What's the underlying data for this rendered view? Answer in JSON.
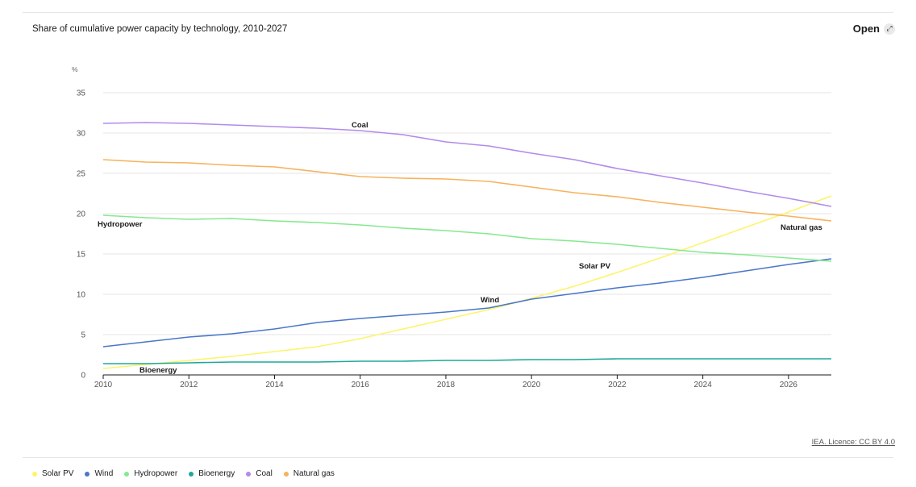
{
  "header": {
    "title": "Share of cumulative power capacity by technology, 2010-2027",
    "open_label": "Open",
    "open_icon": "expand-icon"
  },
  "source_label": "IEA. Licence: CC BY 4.0",
  "chart_data": {
    "type": "line",
    "title": "Share of cumulative power capacity by technology, 2010-2027",
    "xlabel": "",
    "ylabel": "%",
    "xlim": [
      2010,
      2027
    ],
    "ylim": [
      0,
      35
    ],
    "x_ticks": [
      2010,
      2012,
      2014,
      2016,
      2018,
      2020,
      2022,
      2024,
      2026
    ],
    "y_ticks": [
      0,
      5,
      10,
      15,
      20,
      25,
      30,
      35
    ],
    "grid": true,
    "legend_position": "bottom-left",
    "x": [
      2010,
      2011,
      2012,
      2013,
      2014,
      2015,
      2016,
      2017,
      2018,
      2019,
      2020,
      2021,
      2022,
      2023,
      2024,
      2025,
      2026,
      2027
    ],
    "series": [
      {
        "name": "Solar PV",
        "color": "#fdf46b",
        "label": "Solar PV",
        "values": [
          0.8,
          1.3,
          1.8,
          2.3,
          2.9,
          3.5,
          4.5,
          5.7,
          6.9,
          8.1,
          9.5,
          11.0,
          12.7,
          14.5,
          16.4,
          18.3,
          20.2,
          22.2
        ]
      },
      {
        "name": "Wind",
        "color": "#4a77c9",
        "label": "Wind",
        "values": [
          3.5,
          4.1,
          4.7,
          5.1,
          5.7,
          6.5,
          7.0,
          7.4,
          7.8,
          8.3,
          9.4,
          10.1,
          10.8,
          11.4,
          12.1,
          12.9,
          13.7,
          14.4
        ]
      },
      {
        "name": "Hydropower",
        "color": "#85e98f",
        "label": "Hydropower",
        "values": [
          19.8,
          19.5,
          19.3,
          19.4,
          19.1,
          18.9,
          18.6,
          18.2,
          17.9,
          17.5,
          16.9,
          16.6,
          16.2,
          15.7,
          15.2,
          14.9,
          14.5,
          14.1
        ]
      },
      {
        "name": "Bioenergy",
        "color": "#1fa89b",
        "label": "Bioenergy",
        "values": [
          1.4,
          1.4,
          1.5,
          1.6,
          1.6,
          1.6,
          1.7,
          1.7,
          1.8,
          1.8,
          1.9,
          1.9,
          2.0,
          2.0,
          2.0,
          2.0,
          2.0,
          2.0
        ]
      },
      {
        "name": "Coal",
        "color": "#b28bea",
        "label": "Coal",
        "values": [
          31.2,
          31.3,
          31.2,
          31.0,
          30.8,
          30.6,
          30.3,
          29.8,
          28.9,
          28.4,
          27.5,
          26.7,
          25.6,
          24.7,
          23.8,
          22.8,
          21.9,
          20.9
        ]
      },
      {
        "name": "Natural gas",
        "color": "#f7b25b",
        "label": "Natural gas",
        "values": [
          26.7,
          26.4,
          26.3,
          26.0,
          25.8,
          25.2,
          24.6,
          24.4,
          24.3,
          24.0,
          23.3,
          22.6,
          22.1,
          21.4,
          20.8,
          20.2,
          19.7,
          19.1
        ]
      }
    ]
  },
  "legend": [
    {
      "label": "Solar PV",
      "color": "#fdf46b"
    },
    {
      "label": "Wind",
      "color": "#4a77c9"
    },
    {
      "label": "Hydropower",
      "color": "#85e98f"
    },
    {
      "label": "Bioenergy",
      "color": "#1fa89b"
    },
    {
      "label": "Coal",
      "color": "#b28bea"
    },
    {
      "label": "Natural gas",
      "color": "#f7b25b"
    }
  ]
}
